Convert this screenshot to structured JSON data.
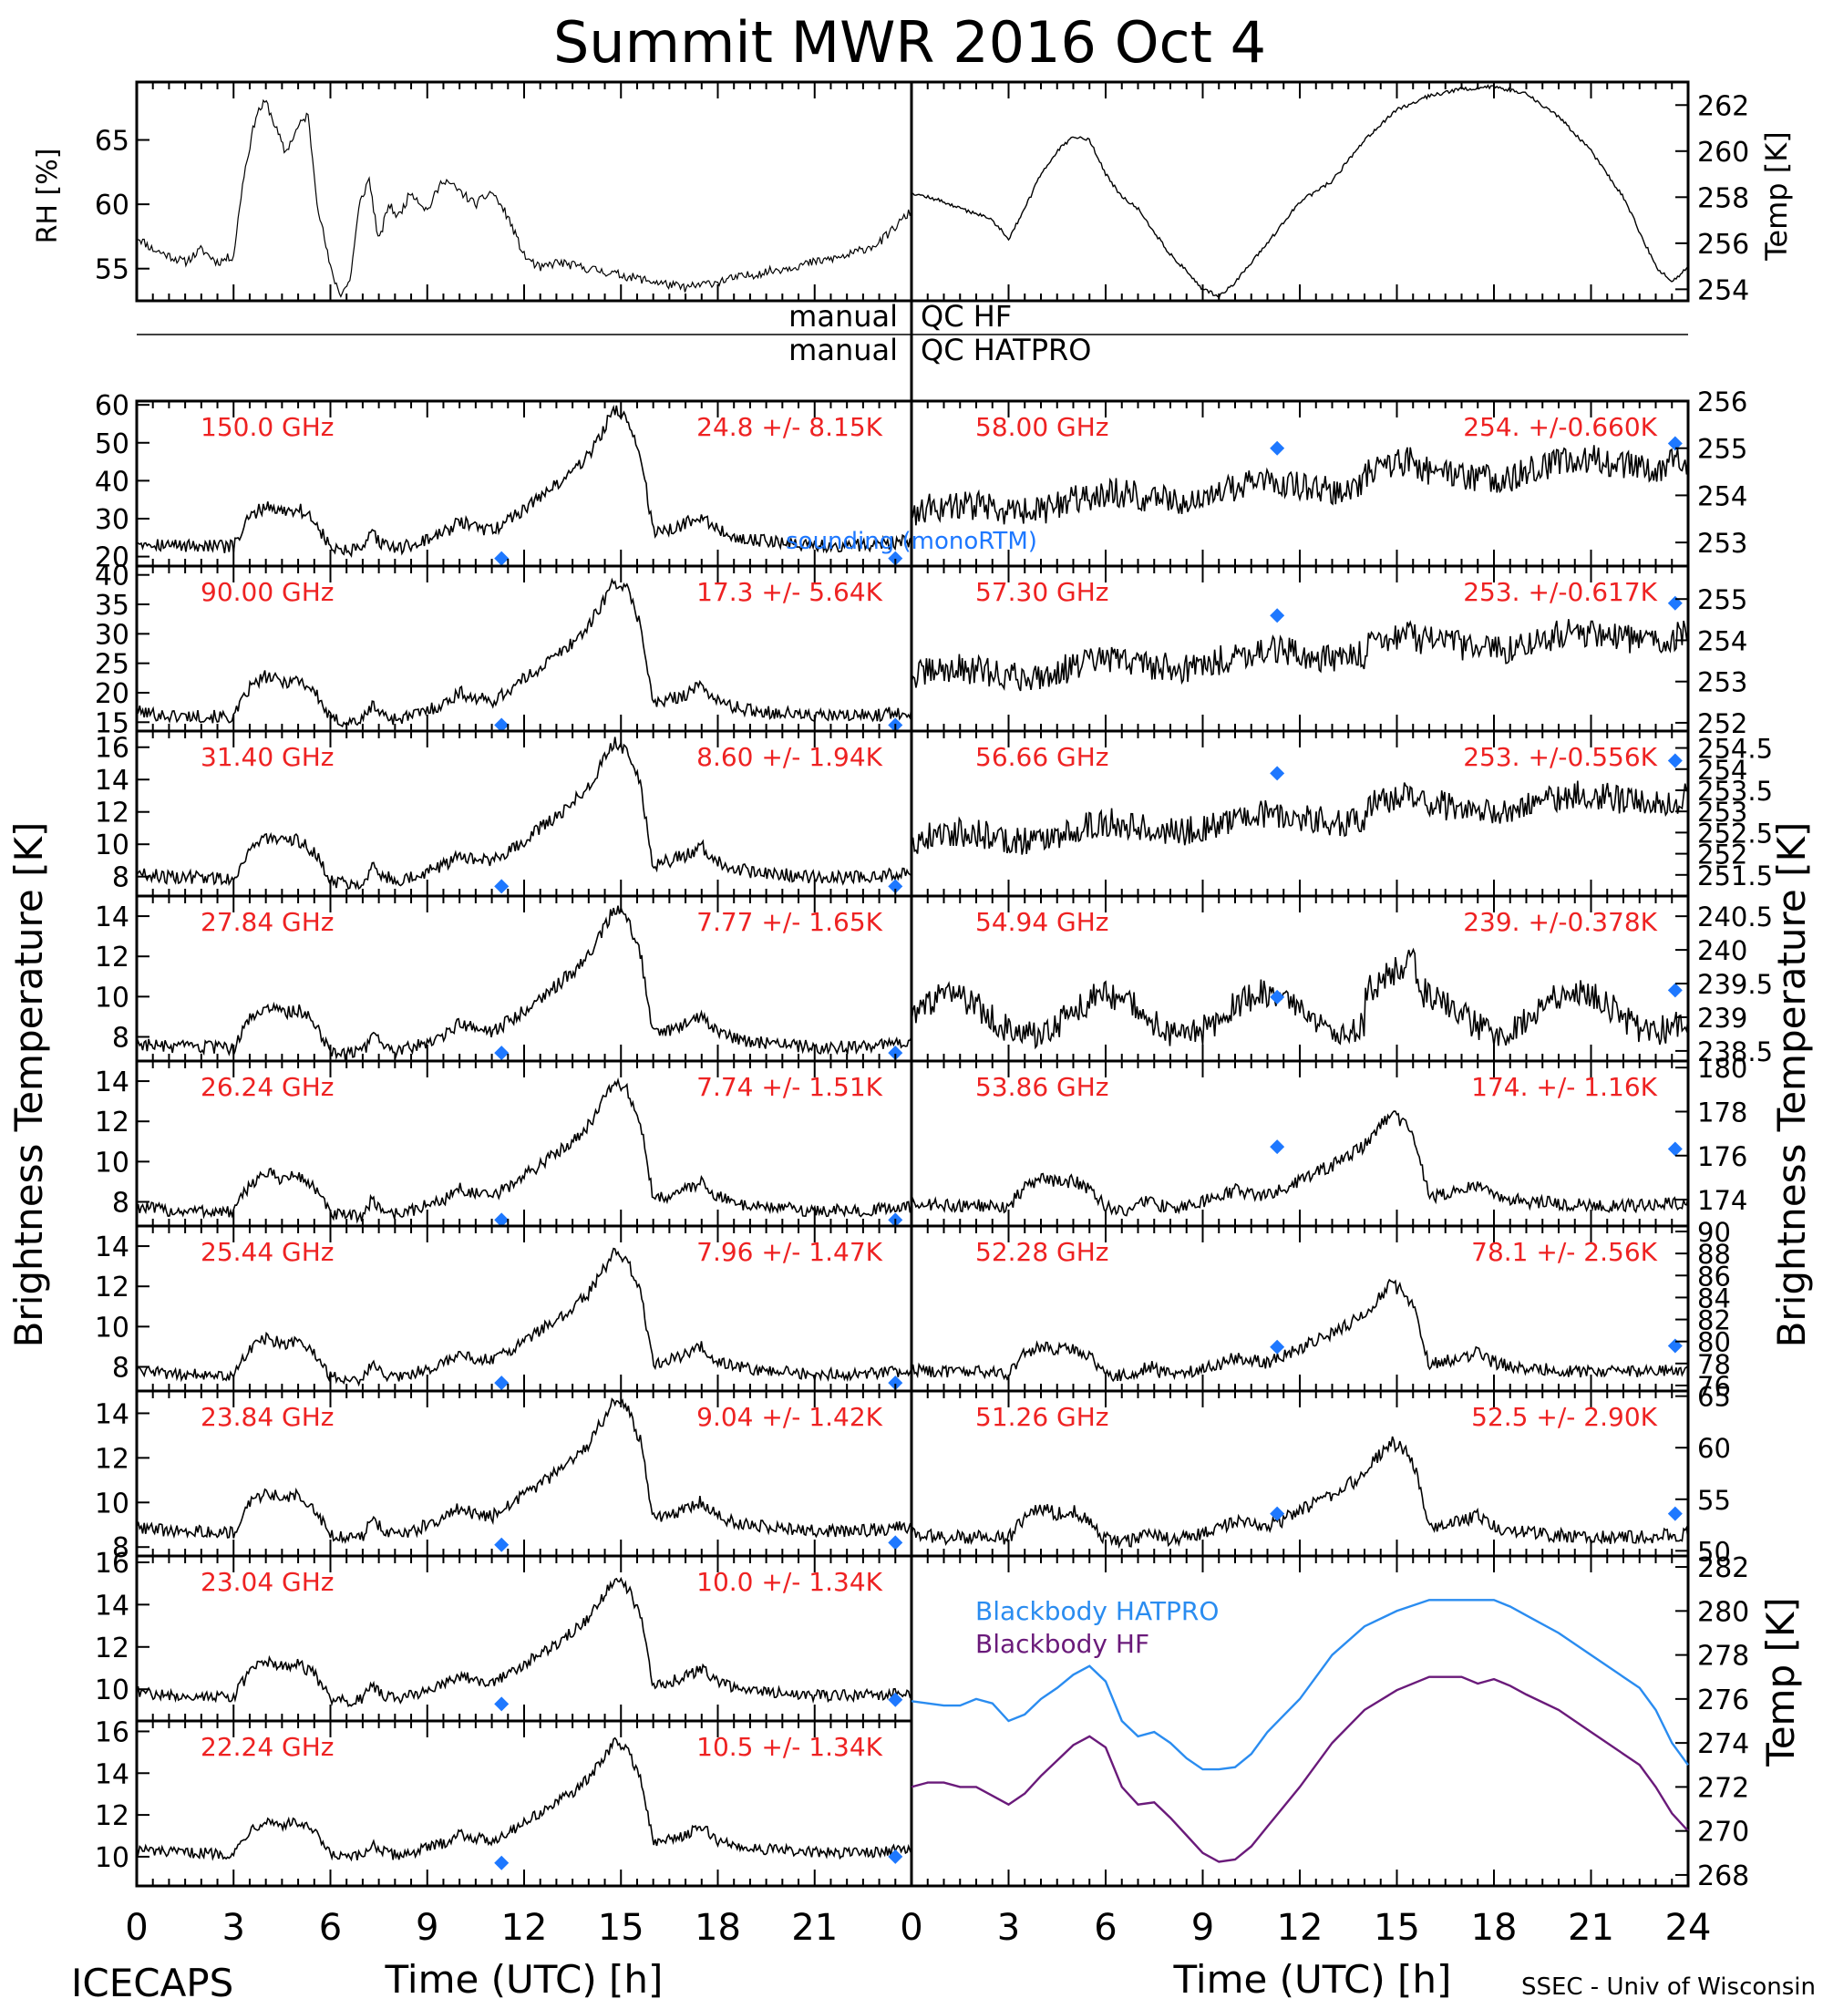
{
  "title": "Summit MWR 2016 Oct  4",
  "footer": {
    "left": "ICECAPS",
    "right": "SSEC - Univ of Wisconsin",
    "xlabel_left": "Time (UTC) [h]",
    "xlabel_right": "Time (UTC) [h]"
  },
  "axis_labels": {
    "rh": "RH [%]",
    "temp_top": "Temp [K]",
    "brightness_left": "Brightness Temperature [K]",
    "brightness_right": "Brightness Temperature [K]",
    "temp_bottom": "Temp [K]"
  },
  "qc": {
    "manual_hf": "manual",
    "qc_hf": "QC HF",
    "manual_hatpro": "manual",
    "qc_hatpro": "QC HATPRO"
  },
  "colors": {
    "stat_text": "#ee2222",
    "sounding": "#1e78ff",
    "blackbody_hatpro": "#2a8cf0",
    "blackbody_hf": "#6a1a7a",
    "trace": "#000000"
  },
  "chart_data": {
    "type": "line",
    "xlim": [
      0,
      24
    ],
    "xticks": [
      0,
      3,
      6,
      9,
      12,
      15,
      18,
      21
    ],
    "xticks_right": [
      0,
      3,
      6,
      9,
      12,
      15,
      18,
      21,
      24
    ],
    "rh": {
      "ylim": [
        52.5,
        69.5
      ],
      "yticks": [
        "55",
        "60",
        "65"
      ],
      "x": [
        0,
        0.5,
        1,
        1.5,
        2,
        2.5,
        3,
        3.3,
        3.7,
        4,
        4.3,
        4.6,
        5,
        5.3,
        5.6,
        6,
        6.3,
        6.6,
        6.9,
        7.2,
        7.5,
        7.8,
        8.1,
        8.5,
        9,
        9.5,
        10,
        10.5,
        11,
        11.5,
        12,
        12.5,
        13,
        14,
        15,
        16,
        17,
        18,
        19,
        20,
        21,
        22,
        23,
        24
      ],
      "values": [
        57.5,
        56.5,
        56,
        55.5,
        56.5,
        55.5,
        56,
        62,
        67,
        68,
        66,
        64,
        66,
        67,
        60,
        55,
        53,
        54,
        60,
        62,
        57,
        60,
        59,
        61,
        59.5,
        62,
        61,
        60,
        61,
        59,
        56,
        55,
        55.5,
        55,
        54.5,
        54,
        53.5,
        54,
        54.5,
        55,
        55.5,
        56,
        57,
        59.5
      ]
    },
    "temp_top": {
      "ylim": [
        253.5,
        263
      ],
      "yticks": [
        "254",
        "256",
        "258",
        "260",
        "262"
      ],
      "x": [
        0,
        0.5,
        1,
        1.5,
        2,
        2.5,
        3,
        3.5,
        4,
        4.5,
        5,
        5.5,
        6,
        6.5,
        7,
        7.5,
        8,
        8.5,
        9,
        9.5,
        10,
        11,
        12,
        13,
        14,
        15,
        16,
        17,
        18,
        19,
        20,
        21,
        21.5,
        22,
        22.5,
        23,
        23.5,
        24
      ],
      "values": [
        258.2,
        258,
        257.8,
        257.5,
        257.3,
        257,
        256.2,
        257.5,
        259,
        260,
        260.6,
        260.5,
        259,
        258,
        257.5,
        256.5,
        255.5,
        254.8,
        254,
        253.7,
        254.3,
        256,
        257.8,
        258.7,
        260.5,
        261.8,
        262.4,
        262.7,
        262.8,
        262.5,
        261.5,
        260,
        259,
        258,
        256.5,
        255,
        254.3,
        255
      ]
    },
    "panels_left": [
      {
        "freq": "150.0 GHz",
        "stat": "24.8 +/-  8.15K",
        "ylim": [
          17.5,
          61
        ],
        "yticks": [
          "20",
          "30",
          "40",
          "50",
          "60"
        ],
        "base": 21,
        "amp": 39,
        "sounding": [
          [
            11.3,
            19.5
          ],
          [
            23.5,
            19.5
          ]
        ],
        "label_sounding": "sounding (monoRTM)"
      },
      {
        "freq": "90.00 GHz",
        "stat": "17.3 +/-  5.64K",
        "ylim": [
          13.5,
          41.5
        ],
        "yticks": [
          "15",
          "20",
          "25",
          "30",
          "35",
          "40"
        ],
        "base": 14.8,
        "amp": 25,
        "sounding": [
          [
            11.3,
            14.5
          ],
          [
            23.5,
            14.5
          ]
        ]
      },
      {
        "freq": "31.40 GHz",
        "stat": "8.60 +/-  1.94K",
        "ylim": [
          6.8,
          17
        ],
        "yticks": [
          "8",
          "10",
          "12",
          "14",
          "16"
        ],
        "base": 7.5,
        "amp": 9.2,
        "sounding": [
          [
            11.3,
            7.4
          ],
          [
            23.5,
            7.4
          ]
        ]
      },
      {
        "freq": "27.84 GHz",
        "stat": "7.77 +/-  1.65K",
        "ylim": [
          6.8,
          15
        ],
        "yticks": [
          "8",
          "10",
          "12",
          "14"
        ],
        "base": 7.1,
        "amp": 7.5,
        "sounding": [
          [
            11.3,
            7.2
          ],
          [
            23.5,
            7.2
          ]
        ]
      },
      {
        "freq": "26.24 GHz",
        "stat": "7.74 +/-  1.51K",
        "ylim": [
          6.8,
          15
        ],
        "yticks": [
          "8",
          "10",
          "12",
          "14"
        ],
        "base": 7.2,
        "amp": 7,
        "sounding": [
          [
            11.3,
            7.1
          ],
          [
            23.5,
            7.1
          ]
        ]
      },
      {
        "freq": "25.44 GHz",
        "stat": "7.96 +/-  1.47K",
        "ylim": [
          6.8,
          15
        ],
        "yticks": [
          "8",
          "10",
          "12",
          "14"
        ],
        "base": 7.3,
        "amp": 6.6,
        "sounding": [
          [
            11.3,
            7.2
          ],
          [
            23.5,
            7.2
          ]
        ]
      },
      {
        "freq": "23.84 GHz",
        "stat": "9.04 +/-  1.42K",
        "ylim": [
          7.6,
          15
        ],
        "yticks": [
          "8",
          "10",
          "12",
          "14"
        ],
        "base": 8.4,
        "amp": 6.4,
        "sounding": [
          [
            11.3,
            8.1
          ],
          [
            23.5,
            8.2
          ]
        ]
      },
      {
        "freq": "23.04 GHz",
        "stat": "10.0 +/-  1.34K",
        "ylim": [
          8.5,
          16.3
        ],
        "yticks": [
          "10",
          "12",
          "14",
          "16"
        ],
        "base": 9.4,
        "amp": 6,
        "sounding": [
          [
            11.3,
            9.3
          ],
          [
            23.5,
            9.5
          ]
        ]
      },
      {
        "freq": "22.24 GHz",
        "stat": "10.5 +/-  1.34K",
        "ylim": [
          8.6,
          16.5
        ],
        "yticks": [
          "10",
          "12",
          "14",
          "16"
        ],
        "base": 9.9,
        "amp": 5.8,
        "sounding": [
          [
            11.3,
            9.7
          ],
          [
            23.5,
            10
          ]
        ]
      }
    ],
    "panels_right": [
      {
        "freq": "58.00 GHz",
        "stat": "254. +/-0.660K",
        "ylim": [
          252.5,
          256
        ],
        "yticks": [
          "253",
          "254",
          "255",
          "256"
        ],
        "base": 253.6,
        "trend": 1.2,
        "amp": 0.3,
        "sounding": [
          [
            11.3,
            255.0
          ],
          [
            23.6,
            255.1
          ]
        ]
      },
      {
        "freq": "57.30 GHz",
        "stat": "253. +/-0.617K",
        "ylim": [
          251.8,
          255.8
        ],
        "yticks": [
          "252",
          "253",
          "254",
          "255"
        ],
        "base": 253.1,
        "trend": 1.1,
        "amp": 0.3,
        "sounding": [
          [
            11.3,
            254.6
          ],
          [
            23.6,
            254.9
          ]
        ]
      },
      {
        "freq": "56.66 GHz",
        "stat": "253. +/-0.556K",
        "ylim": [
          251,
          254.9
        ],
        "yticks": [
          "251.5",
          "252",
          "252.5",
          "253",
          "253.5",
          "254",
          "254.5"
        ],
        "base": 252.3,
        "trend": 1.1,
        "amp": 0.3,
        "sounding": [
          [
            11.3,
            253.9
          ],
          [
            23.6,
            254.2
          ]
        ]
      },
      {
        "freq": "54.94 GHz",
        "stat": "239. +/-0.378K",
        "ylim": [
          238.35,
          240.8
        ],
        "yticks": [
          "238.5",
          "239",
          "239.5",
          "240",
          "240.5"
        ],
        "base": 239.0,
        "trend": 0.1,
        "amp": 0.6,
        "sounding": [
          [
            11.3,
            239.3
          ],
          [
            23.6,
            239.4
          ]
        ]
      },
      {
        "freq": "53.86 GHz",
        "stat": "174. +/-  1.16K",
        "ylim": [
          172.8,
          180.3
        ],
        "yticks": [
          "174",
          "176",
          "178",
          "180"
        ],
        "base": 173.5,
        "trend": 0,
        "amp": 6,
        "sounding": [
          [
            11.3,
            176.4
          ],
          [
            23.6,
            176.3
          ]
        ]
      },
      {
        "freq": "52.28 GHz",
        "stat": "78.1 +/-  2.56K",
        "ylim": [
          75.5,
          90.5
        ],
        "yticks": [
          "76",
          "78",
          "80",
          "82",
          "84",
          "86",
          "88",
          "90"
        ],
        "base": 76.8,
        "trend": 0,
        "amp": 11.5,
        "sounding": [
          [
            11.3,
            79.5
          ],
          [
            23.6,
            79.6
          ]
        ]
      },
      {
        "freq": "51.26 GHz",
        "stat": "52.5 +/-  2.90K",
        "ylim": [
          49.5,
          65.5
        ],
        "yticks": [
          "50",
          "55",
          "60",
          "65"
        ],
        "base": 50.8,
        "trend": 0,
        "amp": 13.5,
        "sounding": [
          [
            11.3,
            53.6
          ],
          [
            23.6,
            53.6
          ]
        ]
      }
    ],
    "blackbody": {
      "ylim": [
        267.5,
        282.5
      ],
      "yticks": [
        "268",
        "270",
        "272",
        "274",
        "276",
        "278",
        "280",
        "282"
      ],
      "legend_hatpro": "Blackbody HATPRO",
      "legend_hf": "Blackbody HF",
      "x": [
        0,
        0.5,
        1,
        1.5,
        2,
        2.5,
        3,
        3.5,
        4,
        4.5,
        5,
        5.5,
        6,
        6.5,
        7,
        7.5,
        8,
        8.5,
        9,
        9.5,
        10,
        10.5,
        11,
        12,
        13,
        14,
        15,
        16,
        17,
        17.5,
        18,
        18.5,
        19,
        20,
        21,
        22,
        22.5,
        23,
        23.5,
        24
      ],
      "hatpro": [
        275.9,
        275.8,
        275.7,
        275.7,
        276.0,
        275.8,
        275.0,
        275.3,
        276.0,
        276.5,
        277.1,
        277.5,
        276.8,
        275.0,
        274.3,
        274.5,
        274.0,
        273.3,
        272.8,
        272.8,
        272.9,
        273.5,
        274.5,
        276.0,
        278.0,
        279.3,
        280.0,
        280.5,
        280.5,
        280.5,
        280.5,
        280.2,
        279.8,
        279.0,
        278.0,
        277.0,
        276.5,
        275.5,
        274.0,
        273.0
      ],
      "hf": [
        272.0,
        272.2,
        272.2,
        272.0,
        272.0,
        271.6,
        271.2,
        271.7,
        272.5,
        273.2,
        273.9,
        274.3,
        273.8,
        272.0,
        271.2,
        271.3,
        270.6,
        269.8,
        269.0,
        268.6,
        268.7,
        269.3,
        270.2,
        272.0,
        274.0,
        275.5,
        276.4,
        277.0,
        277.0,
        276.7,
        276.9,
        276.6,
        276.2,
        275.5,
        274.5,
        273.5,
        273.0,
        272.0,
        270.8,
        270.0
      ]
    }
  }
}
